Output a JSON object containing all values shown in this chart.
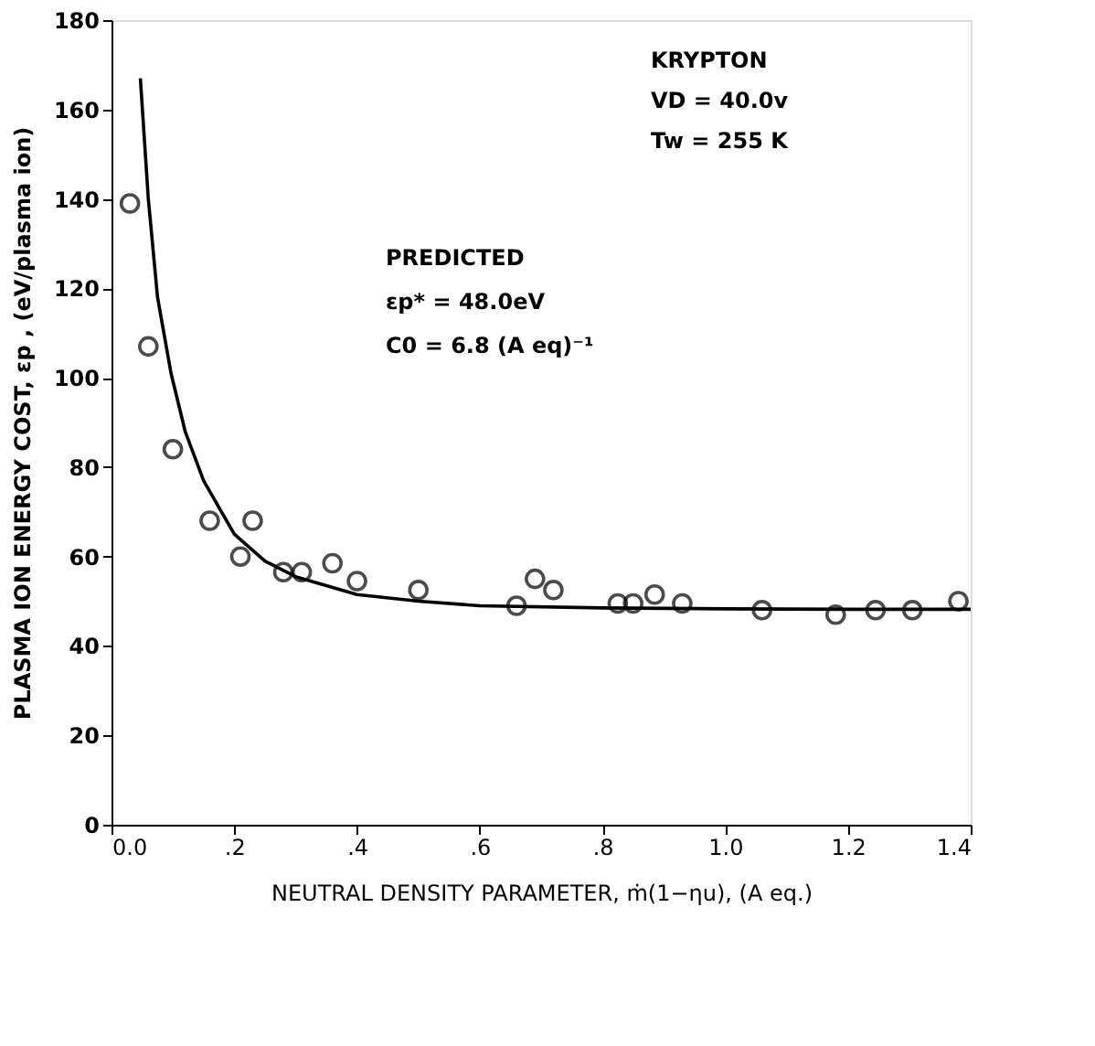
{
  "chart_data": {
    "type": "scatter",
    "xlabel": "NEUTRAL DENSITY PARAMETER, ṁ(1−ηu), (A eq.)",
    "ylabel": "PLASMA ION ENERGY COST, εp , (eV/plasma ion)",
    "series": [
      {
        "color": "#000000",
        "marker": "circle",
        "x": [
          0.03,
          0.06,
          0.1,
          0.16,
          0.21,
          0.23,
          0.28,
          0.31,
          0.36,
          0.4,
          0.5,
          0.66,
          0.69,
          0.72,
          0.825,
          0.85,
          0.885,
          0.93,
          1.06,
          1.18,
          1.245,
          1.305,
          1.38
        ],
        "values": [
          139,
          107,
          84,
          68,
          60,
          68,
          56.5,
          56.5,
          58.5,
          54.5,
          52.5,
          49,
          55,
          52.5,
          49.5,
          49.5,
          51.5,
          49.5,
          48,
          47,
          48,
          48,
          50
        ]
      },
      {
        "type": "line",
        "color": "#000000",
        "marker": "none",
        "line_style": "solid",
        "x": [
          0.047,
          0.06,
          0.075,
          0.097,
          0.12,
          0.15,
          0.2,
          0.25,
          0.3,
          0.4,
          0.5,
          0.6,
          0.8,
          1.0,
          1.2,
          1.4
        ],
        "values": [
          167,
          140,
          118,
          101,
          88,
          77,
          65,
          59,
          55.5,
          51.5,
          50,
          49,
          48.5,
          48.3,
          48.2,
          48.2
        ]
      }
    ],
    "xlim": [
      0,
      1.4
    ],
    "ylim": [
      0,
      180
    ],
    "xticks": [
      {
        "value": 0,
        "label": "0.0"
      },
      {
        "value": 0.2,
        "label": ".2"
      },
      {
        "value": 0.4,
        "label": ".4"
      },
      {
        "value": 0.6,
        "label": ".6"
      },
      {
        "value": 0.8,
        "label": ".8"
      },
      {
        "value": 1.0,
        "label": "1.0"
      },
      {
        "value": 1.2,
        "label": "1.2"
      },
      {
        "value": 1.4,
        "label": "1.4"
      }
    ],
    "yticks": [
      0,
      20,
      40,
      60,
      80,
      100,
      120,
      140,
      160,
      180
    ],
    "grid": false,
    "legend": false,
    "annotations": [
      "KRYPTON",
      "VD = 40.0v",
      "Tw = 255 K",
      "PREDICTED",
      "εp* = 48.0eV",
      "C0 = 6.8 (A eq)⁻¹"
    ]
  }
}
